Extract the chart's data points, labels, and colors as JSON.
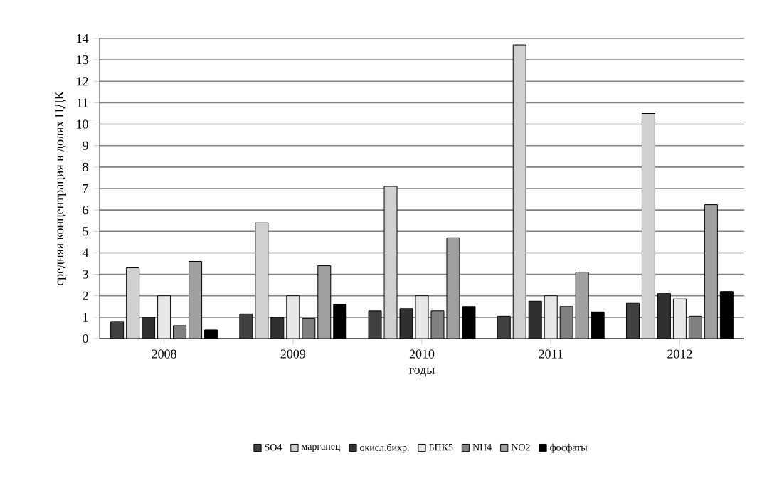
{
  "chart_data": {
    "type": "bar",
    "xlabel": "годы",
    "ylabel": "средняя концентрация в долях ПДК",
    "categories": [
      "2008",
      "2009",
      "2010",
      "2011",
      "2012"
    ],
    "series": [
      {
        "name": "SO4",
        "color": "#404040",
        "values": [
          0.8,
          1.15,
          1.3,
          1.05,
          1.65
        ]
      },
      {
        "name": "марганец",
        "color": "#d0d0d0",
        "values": [
          3.3,
          5.4,
          7.1,
          13.7,
          10.5
        ]
      },
      {
        "name": "окисл.бихр.",
        "color": "#303030",
        "values": [
          1.0,
          1.0,
          1.4,
          1.75,
          2.1
        ]
      },
      {
        "name": "БПК5",
        "color": "#e8e8e8",
        "values": [
          2.0,
          2.0,
          2.0,
          2.0,
          1.85
        ]
      },
      {
        "name": "NH4",
        "color": "#808080",
        "values": [
          0.6,
          0.95,
          1.3,
          1.5,
          1.05
        ]
      },
      {
        "name": "NO2",
        "color": "#a0a0a0",
        "values": [
          3.6,
          3.4,
          4.7,
          3.1,
          6.25
        ]
      },
      {
        "name": "фосфаты",
        "color": "#000000",
        "values": [
          0.4,
          1.6,
          1.5,
          1.25,
          2.2
        ]
      }
    ],
    "ylim": [
      0,
      14
    ],
    "yticks": [
      0,
      1,
      2,
      3,
      4,
      5,
      6,
      7,
      8,
      9,
      10,
      11,
      12,
      13,
      14
    ],
    "grid": "y",
    "legend": "bottom"
  }
}
